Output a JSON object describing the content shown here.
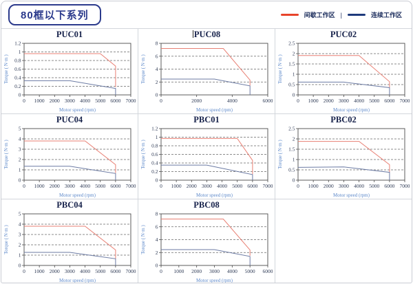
{
  "header": {
    "badge": "80框以下系列",
    "legend_separator": "|",
    "legend": [
      {
        "label": "间歇工作区",
        "color": "#e8432a"
      },
      {
        "label": "连续工作区",
        "color": "#1e3a7c"
      }
    ]
  },
  "colors": {
    "box": "#4a4a4a",
    "grid": "#666666",
    "tick_text": "#2e3a55",
    "axis_label": "#5b87c9",
    "title": "#16214a",
    "intermittent_line": "#e87f73",
    "continuous_line": "#6b7aa3"
  },
  "chart_data": [
    {
      "type": "line",
      "title": "PUC01",
      "xlabel": "Motor speed (rpm)",
      "ylabel": "Torque ( N·m )",
      "xlim": [
        0,
        7000
      ],
      "ylim": [
        0,
        1.2
      ],
      "xticks": [
        0,
        1000,
        2000,
        3000,
        4000,
        5000,
        6000,
        7000
      ],
      "yticks": [
        0,
        0.2,
        0.4,
        0.6,
        0.8,
        1,
        1.2
      ],
      "grid": "horizontal-dashed",
      "legend_position": "none",
      "series": [
        {
          "name": "间歇工作区",
          "color": "#e87f73",
          "points": [
            [
              0,
              0.96
            ],
            [
              5000,
              0.96
            ],
            [
              6000,
              0.67
            ],
            [
              6000,
              0.18
            ]
          ]
        },
        {
          "name": "连续工作区",
          "color": "#6b7aa3",
          "points": [
            [
              0,
              0.33
            ],
            [
              3000,
              0.33
            ],
            [
              6000,
              0.15
            ],
            [
              6000,
              0
            ]
          ]
        }
      ]
    },
    {
      "type": "line",
      "title": "PUC08",
      "xlabel": "Motor speed (rpm)",
      "ylabel": "Torque ( N·m )",
      "xlim": [
        0,
        6000
      ],
      "ylim": [
        0,
        8
      ],
      "xticks": [
        0,
        2000,
        4000,
        6000
      ],
      "yticks": [
        0,
        2,
        4,
        6,
        8
      ],
      "grid": "horizontal-dashed",
      "legend_position": "none",
      "series": [
        {
          "name": "间歇工作区",
          "color": "#e87f73",
          "points": [
            [
              0,
              7.2
            ],
            [
              3500,
              7.2
            ],
            [
              5000,
              2.3
            ],
            [
              5000,
              1.45
            ]
          ]
        },
        {
          "name": "连续工作区",
          "color": "#6b7aa3",
          "points": [
            [
              0,
              2.45
            ],
            [
              3000,
              2.45
            ],
            [
              5000,
              1.4
            ],
            [
              5000,
              0
            ]
          ]
        }
      ]
    },
    {
      "type": "line",
      "title": "PUC02",
      "xlabel": "Motor speed (rpm)",
      "ylabel": "Torque ( N·m )",
      "xlim": [
        0,
        7000
      ],
      "ylim": [
        0,
        2.5
      ],
      "xticks": [
        0,
        1000,
        2000,
        3000,
        4000,
        5000,
        6000,
        7000
      ],
      "yticks": [
        0,
        0.5,
        1,
        1.5,
        2,
        2.5
      ],
      "grid": "horizontal-dashed",
      "legend_position": "none",
      "series": [
        {
          "name": "间歇工作区",
          "color": "#e87f73",
          "points": [
            [
              0,
              1.91
            ],
            [
              4000,
              1.91
            ],
            [
              6000,
              0.64
            ],
            [
              6000,
              0.35
            ]
          ]
        },
        {
          "name": "连续工作区",
          "color": "#6b7aa3",
          "points": [
            [
              0,
              0.62
            ],
            [
              3000,
              0.62
            ],
            [
              6000,
              0.35
            ],
            [
              6000,
              0
            ]
          ]
        }
      ]
    },
    {
      "type": "line",
      "title": "PUC04",
      "xlabel": "Motor speed (rpm)",
      "ylabel": "Torque ( N·m )",
      "xlim": [
        0,
        7000
      ],
      "ylim": [
        0,
        5
      ],
      "xticks": [
        0,
        1000,
        2000,
        3000,
        4000,
        5000,
        6000,
        7000
      ],
      "yticks": [
        0,
        1,
        2,
        3,
        4,
        5
      ],
      "grid": "horizontal-dashed",
      "legend_position": "none",
      "series": [
        {
          "name": "间歇工作区",
          "color": "#e87f73",
          "points": [
            [
              0,
              3.8
            ],
            [
              4000,
              3.8
            ],
            [
              6000,
              1.5
            ],
            [
              6000,
              0.7
            ]
          ]
        },
        {
          "name": "连续工作区",
          "color": "#6b7aa3",
          "points": [
            [
              0,
              1.35
            ],
            [
              3000,
              1.35
            ],
            [
              6000,
              0.65
            ],
            [
              6000,
              0
            ]
          ]
        }
      ]
    },
    {
      "type": "line",
      "title": "PBC01",
      "xlabel": "Motor speed (rpm)",
      "ylabel": "Torque ( N·m )",
      "xlim": [
        0,
        7000
      ],
      "ylim": [
        0,
        1.2
      ],
      "xticks": [
        0,
        1000,
        2000,
        3000,
        4000,
        5000,
        6000,
        7000
      ],
      "yticks": [
        0,
        0.2,
        0.4,
        0.6,
        0.8,
        1,
        1.2
      ],
      "grid": "horizontal-dashed",
      "legend_position": "none",
      "series": [
        {
          "name": "间歇工作区",
          "color": "#e87f73",
          "points": [
            [
              0,
              0.97
            ],
            [
              5000,
              0.97
            ],
            [
              6000,
              0.46
            ],
            [
              6000,
              0.14
            ]
          ]
        },
        {
          "name": "连续工作区",
          "color": "#6b7aa3",
          "points": [
            [
              0,
              0.35
            ],
            [
              3000,
              0.35
            ],
            [
              6000,
              0.13
            ],
            [
              6000,
              0
            ]
          ]
        }
      ]
    },
    {
      "type": "line",
      "title": "PBC02",
      "xlabel": "Motor speed (rpm)",
      "ylabel": "Torque ( N·m )",
      "xlim": [
        0,
        7000
      ],
      "ylim": [
        0,
        2.5
      ],
      "xticks": [
        0,
        1000,
        2000,
        3000,
        4000,
        5000,
        6000,
        7000
      ],
      "yticks": [
        0,
        0.5,
        1,
        1.5,
        2,
        2.5
      ],
      "grid": "horizontal-dashed",
      "legend_position": "none",
      "series": [
        {
          "name": "间歇工作区",
          "color": "#e87f73",
          "points": [
            [
              0,
              1.88
            ],
            [
              4000,
              1.88
            ],
            [
              6000,
              0.75
            ],
            [
              6000,
              0.38
            ]
          ]
        },
        {
          "name": "连续工作区",
          "color": "#6b7aa3",
          "points": [
            [
              0,
              0.62
            ],
            [
              3000,
              0.64
            ],
            [
              6000,
              0.38
            ],
            [
              6000,
              0
            ]
          ]
        }
      ]
    },
    {
      "type": "line",
      "title": "PBC04",
      "xlabel": "Motor speed (rpm)",
      "ylabel": "Torque ( N·m )",
      "xlim": [
        0,
        7000
      ],
      "ylim": [
        0,
        5
      ],
      "xticks": [
        0,
        1000,
        2000,
        3000,
        4000,
        5000,
        6000,
        7000
      ],
      "yticks": [
        0,
        1,
        2,
        3,
        4,
        5
      ],
      "grid": "horizontal-dashed",
      "legend_position": "none",
      "series": [
        {
          "name": "间歇工作区",
          "color": "#e87f73",
          "points": [
            [
              0,
              3.8
            ],
            [
              4000,
              3.8
            ],
            [
              6000,
              1.5
            ],
            [
              6000,
              0.65
            ]
          ]
        },
        {
          "name": "连续工作区",
          "color": "#6b7aa3",
          "points": [
            [
              0,
              1.27
            ],
            [
              3000,
              1.27
            ],
            [
              6000,
              0.65
            ],
            [
              6000,
              0
            ]
          ]
        }
      ]
    },
    {
      "type": "line",
      "title": "PBC08",
      "xlabel": "Motor speed (rpm)",
      "ylabel": "Torque ( N·m )",
      "xlim": [
        0,
        6000
      ],
      "ylim": [
        0,
        8
      ],
      "xticks": [
        0,
        1000,
        2000,
        3000,
        4000,
        5000,
        6000
      ],
      "yticks": [
        0,
        2,
        4,
        6,
        8
      ],
      "grid": "horizontal-dashed",
      "legend_position": "none",
      "series": [
        {
          "name": "间歇工作区",
          "color": "#e87f73",
          "points": [
            [
              0,
              7.2
            ],
            [
              3500,
              7.2
            ],
            [
              5000,
              2.4
            ],
            [
              5000,
              1.5
            ]
          ]
        },
        {
          "name": "连续工作区",
          "color": "#6b7aa3",
          "points": [
            [
              0,
              2.45
            ],
            [
              3000,
              2.45
            ],
            [
              5000,
              1.4
            ],
            [
              5000,
              0
            ]
          ]
        }
      ]
    }
  ]
}
